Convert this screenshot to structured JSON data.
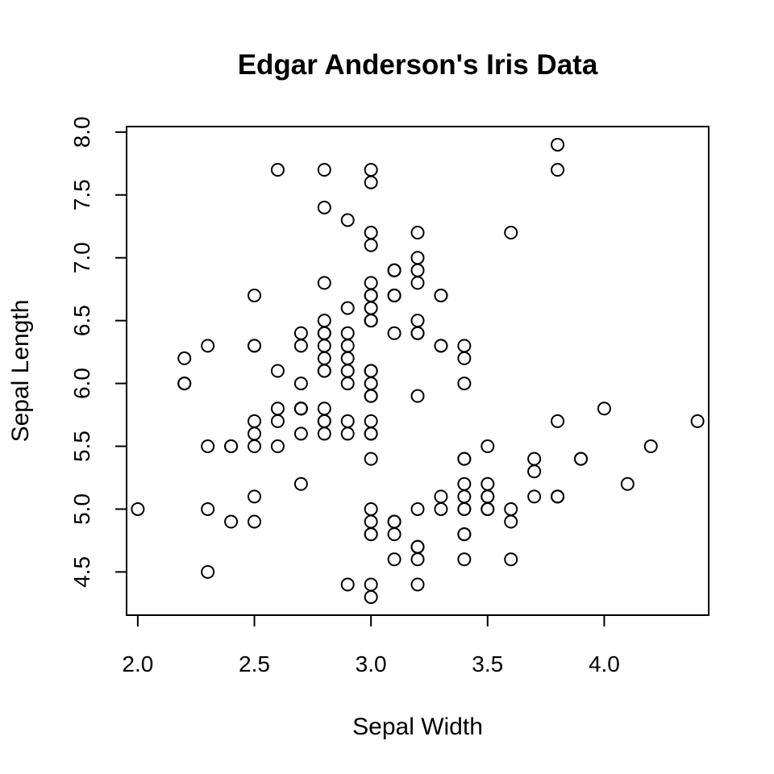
{
  "chart_data": {
    "type": "scatter",
    "title": "Edgar Anderson's Iris Data",
    "xlabel": "Sepal Width",
    "ylabel": "Sepal Length",
    "xlim": [
      1.952,
      4.448
    ],
    "ylim": [
      4.156,
      8.044
    ],
    "xticks": [
      "2.0",
      "2.5",
      "3.0",
      "3.5",
      "4.0"
    ],
    "yticks": [
      "4.5",
      "5.0",
      "5.5",
      "6.0",
      "6.5",
      "7.0",
      "7.5",
      "8.0"
    ],
    "grid": false,
    "legend": "none",
    "points": [
      [
        3.5,
        5.1
      ],
      [
        3.0,
        4.9
      ],
      [
        3.2,
        4.7
      ],
      [
        3.1,
        4.6
      ],
      [
        3.6,
        5.0
      ],
      [
        3.9,
        5.4
      ],
      [
        3.4,
        4.6
      ],
      [
        3.4,
        5.0
      ],
      [
        2.9,
        4.4
      ],
      [
        3.1,
        4.9
      ],
      [
        3.7,
        5.4
      ],
      [
        3.4,
        4.8
      ],
      [
        3.0,
        4.8
      ],
      [
        3.0,
        4.3
      ],
      [
        4.0,
        5.8
      ],
      [
        4.4,
        5.7
      ],
      [
        3.9,
        5.4
      ],
      [
        3.5,
        5.1
      ],
      [
        3.8,
        5.7
      ],
      [
        3.8,
        5.1
      ],
      [
        3.4,
        5.4
      ],
      [
        3.7,
        5.1
      ],
      [
        3.6,
        4.6
      ],
      [
        3.3,
        5.1
      ],
      [
        3.4,
        4.8
      ],
      [
        3.0,
        5.0
      ],
      [
        3.4,
        5.0
      ],
      [
        3.5,
        5.2
      ],
      [
        3.4,
        5.2
      ],
      [
        3.2,
        4.7
      ],
      [
        3.1,
        4.8
      ],
      [
        3.4,
        5.4
      ],
      [
        4.1,
        5.2
      ],
      [
        4.2,
        5.5
      ],
      [
        3.1,
        4.9
      ],
      [
        3.2,
        5.0
      ],
      [
        3.5,
        5.5
      ],
      [
        3.6,
        4.9
      ],
      [
        3.0,
        4.4
      ],
      [
        3.4,
        5.1
      ],
      [
        3.5,
        5.0
      ],
      [
        2.3,
        4.5
      ],
      [
        3.2,
        4.4
      ],
      [
        3.5,
        5.0
      ],
      [
        3.8,
        5.1
      ],
      [
        3.0,
        4.8
      ],
      [
        3.8,
        5.1
      ],
      [
        3.2,
        4.6
      ],
      [
        3.7,
        5.3
      ],
      [
        3.3,
        5.0
      ],
      [
        3.2,
        7.0
      ],
      [
        3.2,
        6.4
      ],
      [
        3.1,
        6.9
      ],
      [
        2.3,
        5.5
      ],
      [
        2.8,
        6.5
      ],
      [
        2.8,
        5.7
      ],
      [
        3.3,
        6.3
      ],
      [
        2.4,
        4.9
      ],
      [
        2.9,
        6.6
      ],
      [
        2.7,
        5.2
      ],
      [
        2.0,
        5.0
      ],
      [
        3.0,
        5.9
      ],
      [
        2.2,
        6.0
      ],
      [
        2.9,
        6.1
      ],
      [
        2.9,
        5.6
      ],
      [
        3.1,
        6.7
      ],
      [
        3.0,
        5.6
      ],
      [
        2.7,
        5.8
      ],
      [
        2.2,
        6.2
      ],
      [
        2.5,
        5.6
      ],
      [
        3.2,
        5.9
      ],
      [
        2.8,
        6.1
      ],
      [
        2.5,
        6.3
      ],
      [
        2.8,
        6.1
      ],
      [
        2.9,
        6.4
      ],
      [
        3.0,
        6.6
      ],
      [
        2.8,
        6.8
      ],
      [
        3.0,
        6.7
      ],
      [
        2.9,
        6.0
      ],
      [
        2.6,
        5.7
      ],
      [
        2.4,
        5.5
      ],
      [
        2.4,
        5.5
      ],
      [
        2.7,
        5.8
      ],
      [
        2.7,
        6.0
      ],
      [
        3.0,
        5.4
      ],
      [
        3.4,
        6.0
      ],
      [
        3.1,
        6.7
      ],
      [
        2.3,
        6.3
      ],
      [
        3.0,
        5.6
      ],
      [
        2.5,
        5.5
      ],
      [
        2.6,
        5.5
      ],
      [
        3.0,
        6.1
      ],
      [
        2.6,
        5.8
      ],
      [
        2.3,
        5.0
      ],
      [
        2.7,
        5.6
      ],
      [
        3.0,
        5.7
      ],
      [
        2.9,
        5.7
      ],
      [
        2.9,
        6.2
      ],
      [
        2.5,
        5.1
      ],
      [
        2.8,
        5.7
      ],
      [
        3.3,
        6.3
      ],
      [
        2.7,
        5.8
      ],
      [
        3.0,
        7.1
      ],
      [
        2.9,
        6.3
      ],
      [
        3.0,
        6.5
      ],
      [
        3.0,
        7.6
      ],
      [
        2.5,
        4.9
      ],
      [
        2.9,
        7.3
      ],
      [
        2.5,
        6.7
      ],
      [
        3.6,
        7.2
      ],
      [
        3.2,
        6.5
      ],
      [
        2.7,
        6.4
      ],
      [
        3.0,
        6.8
      ],
      [
        2.5,
        5.7
      ],
      [
        2.8,
        5.8
      ],
      [
        3.2,
        6.4
      ],
      [
        3.0,
        6.5
      ],
      [
        3.8,
        7.7
      ],
      [
        2.6,
        7.7
      ],
      [
        2.2,
        6.0
      ],
      [
        3.2,
        6.9
      ],
      [
        2.8,
        5.6
      ],
      [
        2.8,
        7.7
      ],
      [
        2.7,
        6.3
      ],
      [
        3.3,
        6.7
      ],
      [
        3.2,
        7.2
      ],
      [
        2.8,
        6.2
      ],
      [
        3.0,
        6.1
      ],
      [
        2.8,
        6.4
      ],
      [
        3.0,
        7.2
      ],
      [
        2.8,
        7.4
      ],
      [
        3.8,
        7.9
      ],
      [
        2.8,
        6.4
      ],
      [
        2.8,
        6.3
      ],
      [
        2.6,
        6.1
      ],
      [
        3.0,
        7.7
      ],
      [
        3.4,
        6.3
      ],
      [
        3.1,
        6.4
      ],
      [
        3.0,
        6.0
      ],
      [
        3.1,
        6.9
      ],
      [
        3.1,
        6.7
      ],
      [
        3.1,
        6.9
      ],
      [
        2.7,
        5.8
      ],
      [
        3.2,
        6.8
      ],
      [
        3.3,
        6.7
      ],
      [
        3.0,
        6.7
      ],
      [
        2.5,
        6.3
      ],
      [
        3.0,
        6.5
      ],
      [
        3.4,
        6.2
      ],
      [
        3.0,
        5.9
      ]
    ]
  }
}
